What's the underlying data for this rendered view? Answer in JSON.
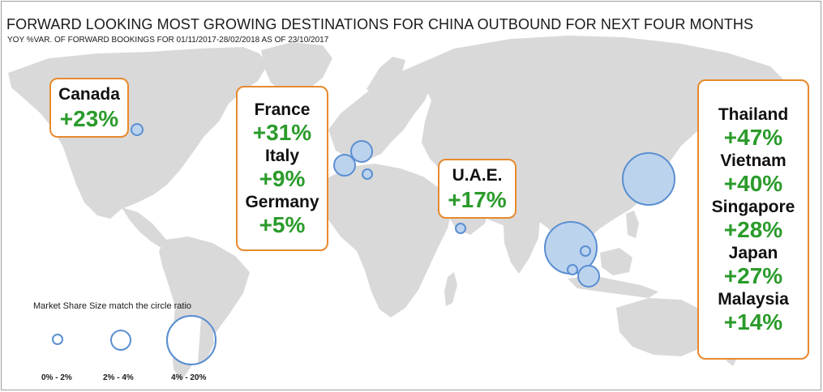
{
  "header": {
    "title": "FORWARD LOOKING MOST GROWING DESTINATIONS FOR CHINA OUTBOUND FOR NEXT FOUR MONTHS",
    "subtitle": "YOY %VAR. OF FORWARD BOOKINGS FOR 01/11/2017-28/02/2018 AS OF 23/10/2017"
  },
  "destinations": {
    "canada": {
      "country": "Canada",
      "growth": "+23%"
    },
    "europe": [
      {
        "country": "France",
        "growth": "+31%"
      },
      {
        "country": "Italy",
        "growth": "+9%"
      },
      {
        "country": "Germany",
        "growth": "+5%"
      }
    ],
    "uae": {
      "country": "U.A.E.",
      "growth": "+17%"
    },
    "asia": [
      {
        "country": "Thailand",
        "growth": "+47%"
      },
      {
        "country": "Vietnam",
        "growth": "+40%"
      },
      {
        "country": "Singapore",
        "growth": "+28%"
      },
      {
        "country": "Japan",
        "growth": "+27%"
      },
      {
        "country": "Malaysia",
        "growth": "+14%"
      }
    ]
  },
  "legend": {
    "title": "Market Share Size match the circle ratio",
    "items": [
      {
        "label": "0% - 2%"
      },
      {
        "label": "2% - 4%"
      },
      {
        "label": "4% - 20%"
      }
    ]
  },
  "colors": {
    "accent_border": "#e8892d",
    "growth_text": "#2b9b2b",
    "land": "#d9d9d9",
    "bubble_fill": "#bcd3ee",
    "bubble_stroke": "#5b8fd1"
  }
}
